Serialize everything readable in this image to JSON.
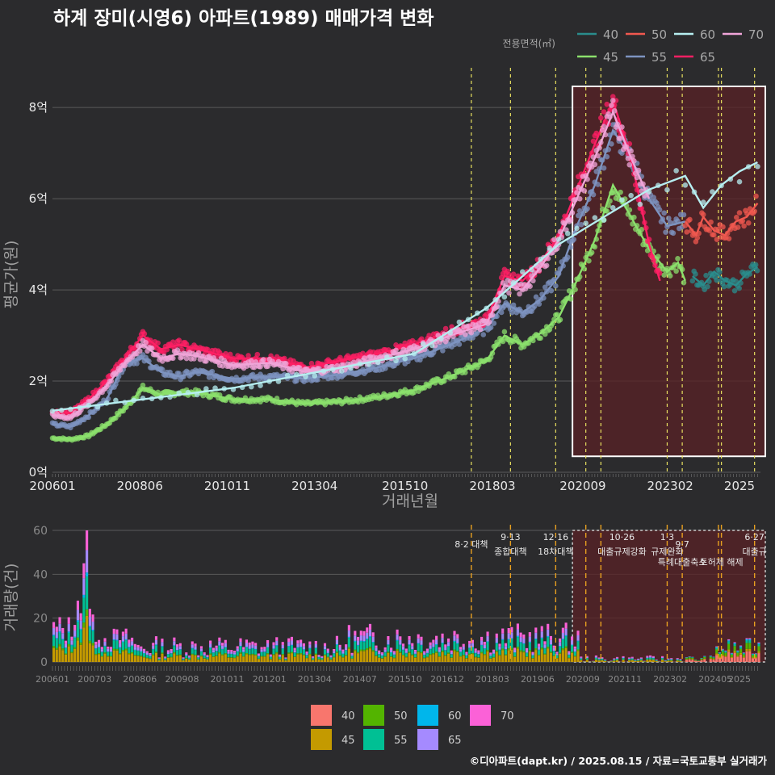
{
  "title": "하계 장미(시영6) 아파트(1989) 매매가격 변화",
  "source": "©디아파트(dapt.kr) / 2025.08.15 / 자료=국토교통부 실거래가",
  "colors": {
    "bg": "#2b2b2d",
    "grid": "#5a5a5a",
    "line": {
      "40": "#2a8c8c",
      "45": "#8be06c",
      "50": "#f0584f",
      "55": "#7d93c0",
      "60": "#b6eef0",
      "65": "#ff1f64",
      "70": "#f0a4d8"
    },
    "bar": {
      "40": "#f8766d",
      "45": "#c49a00",
      "50": "#53b400",
      "55": "#00c094",
      "60": "#00b6eb",
      "65": "#a58aff",
      "70": "#fb61d7"
    }
  },
  "top_chart": {
    "type": "line",
    "xlabel": "거래년월",
    "ylabel": "평균가(원)",
    "x_ticks": [
      "200601",
      "200806",
      "201011",
      "201304",
      "201510",
      "201803",
      "202009",
      "202302",
      "2025"
    ],
    "y_ticks": [
      "0억",
      "2억",
      "4억",
      "6억",
      "8억"
    ],
    "ylim": [
      0,
      8.8
    ],
    "legend_title": "전용면적(㎡)",
    "legend": [
      "40",
      "50",
      "60",
      "70",
      "45",
      "55",
      "65"
    ],
    "highlight_window": {
      "start": "202012",
      "end": "202507"
    },
    "policy_dates": [
      "201708",
      "201809",
      "201912",
      "202010",
      "202103",
      "202301",
      "202306",
      "202406",
      "202407",
      "202506"
    ],
    "series": [
      {
        "name": "45",
        "values": [
          [
            2006.0,
            0.75
          ],
          [
            2006.5,
            0.72
          ],
          [
            2007.0,
            0.8
          ],
          [
            2007.5,
            1.05
          ],
          [
            2008.0,
            1.4
          ],
          [
            2008.5,
            1.85
          ],
          [
            2009.0,
            1.7
          ],
          [
            2009.5,
            1.75
          ],
          [
            2010.0,
            1.75
          ],
          [
            2011.0,
            1.6
          ],
          [
            2012.0,
            1.6
          ],
          [
            2013.0,
            1.5
          ],
          [
            2014.0,
            1.55
          ],
          [
            2015.0,
            1.65
          ],
          [
            2016.0,
            1.8
          ],
          [
            2017.0,
            2.1
          ],
          [
            2018.0,
            2.45
          ],
          [
            2018.5,
            3.0
          ],
          [
            2019.0,
            2.8
          ],
          [
            2019.5,
            3.05
          ],
          [
            2020.0,
            3.4
          ],
          [
            2020.5,
            4.2
          ],
          [
            2021.0,
            5.1
          ],
          [
            2021.5,
            6.3
          ],
          [
            2022.0,
            5.6
          ],
          [
            2022.5,
            4.9
          ],
          [
            2023.0,
            4.4
          ],
          [
            2023.3,
            4.6
          ],
          [
            2023.5,
            4.2
          ]
        ]
      },
      {
        "name": "55",
        "values": [
          [
            2006.0,
            1.05
          ],
          [
            2006.5,
            1.0
          ],
          [
            2007.0,
            1.25
          ],
          [
            2007.5,
            1.6
          ],
          [
            2008.0,
            2.4
          ],
          [
            2008.5,
            2.5
          ],
          [
            2009.0,
            2.2
          ],
          [
            2009.5,
            2.1
          ],
          [
            2010.0,
            2.2
          ],
          [
            2011.0,
            2.05
          ],
          [
            2012.0,
            2.1
          ],
          [
            2013.0,
            2.05
          ],
          [
            2014.0,
            2.15
          ],
          [
            2015.0,
            2.3
          ],
          [
            2016.0,
            2.5
          ],
          [
            2017.0,
            2.8
          ],
          [
            2018.0,
            3.15
          ],
          [
            2018.5,
            3.7
          ],
          [
            2019.0,
            3.5
          ],
          [
            2019.5,
            3.8
          ],
          [
            2020.0,
            4.3
          ],
          [
            2020.5,
            5.4
          ],
          [
            2021.0,
            6.3
          ],
          [
            2021.5,
            7.5
          ],
          [
            2022.0,
            6.9
          ],
          [
            2022.5,
            6.0
          ],
          [
            2023.0,
            5.4
          ],
          [
            2023.5,
            5.5
          ]
        ]
      },
      {
        "name": "65",
        "values": [
          [
            2006.0,
            1.35
          ],
          [
            2006.5,
            1.3
          ],
          [
            2007.0,
            1.6
          ],
          [
            2007.5,
            2.0
          ],
          [
            2008.0,
            2.5
          ],
          [
            2008.5,
            3.0
          ],
          [
            2009.0,
            2.7
          ],
          [
            2009.5,
            2.8
          ],
          [
            2010.0,
            2.7
          ],
          [
            2011.0,
            2.5
          ],
          [
            2012.0,
            2.5
          ],
          [
            2013.0,
            2.3
          ],
          [
            2014.0,
            2.45
          ],
          [
            2015.0,
            2.6
          ],
          [
            2016.0,
            2.8
          ],
          [
            2017.0,
            3.1
          ],
          [
            2018.0,
            3.35
          ],
          [
            2018.5,
            4.3
          ],
          [
            2019.0,
            4.2
          ],
          [
            2019.5,
            4.6
          ],
          [
            2020.0,
            5.2
          ],
          [
            2020.5,
            6.2
          ],
          [
            2021.0,
            7.2
          ],
          [
            2021.5,
            8.15
          ],
          [
            2022.0,
            6.9
          ],
          [
            2022.5,
            5.0
          ],
          [
            2022.8,
            4.2
          ]
        ]
      },
      {
        "name": "70",
        "values": [
          [
            2006.0,
            1.25
          ],
          [
            2006.5,
            1.2
          ],
          [
            2007.0,
            1.5
          ],
          [
            2007.5,
            1.9
          ],
          [
            2008.0,
            2.4
          ],
          [
            2008.5,
            2.8
          ],
          [
            2009.0,
            2.5
          ],
          [
            2009.5,
            2.6
          ],
          [
            2010.0,
            2.55
          ],
          [
            2011.0,
            2.35
          ],
          [
            2012.0,
            2.4
          ],
          [
            2013.0,
            2.2
          ],
          [
            2014.0,
            2.3
          ],
          [
            2015.0,
            2.5
          ],
          [
            2016.0,
            2.7
          ],
          [
            2017.0,
            3.0
          ],
          [
            2018.0,
            3.25
          ],
          [
            2018.5,
            4.1
          ],
          [
            2019.0,
            4.0
          ],
          [
            2019.5,
            4.5
          ],
          [
            2020.0,
            5.1
          ],
          [
            2020.5,
            6.0
          ],
          [
            2021.0,
            6.9
          ],
          [
            2021.5,
            7.9
          ],
          [
            2022.0,
            6.9
          ],
          [
            2022.5,
            6.0
          ]
        ]
      },
      {
        "name": "60",
        "values": [
          [
            2006.0,
            1.35
          ],
          [
            2011.0,
            1.85
          ],
          [
            2013.0,
            2.15
          ],
          [
            2016.0,
            2.6
          ],
          [
            2018.0,
            3.6
          ],
          [
            2020.0,
            5.0
          ],
          [
            2022.5,
            6.2
          ],
          [
            2023.5,
            6.5
          ],
          [
            2024.0,
            5.8
          ],
          [
            2024.5,
            6.3
          ],
          [
            2025.0,
            6.6
          ],
          [
            2025.5,
            6.8
          ]
        ]
      },
      {
        "name": "50",
        "values": [
          [
            2023.5,
            5.5
          ],
          [
            2023.8,
            5.2
          ],
          [
            2024.0,
            5.6
          ],
          [
            2024.3,
            5.3
          ],
          [
            2024.6,
            5.2
          ],
          [
            2024.9,
            5.5
          ],
          [
            2025.2,
            5.6
          ],
          [
            2025.5,
            5.9
          ]
        ]
      },
      {
        "name": "40",
        "values": [
          [
            2023.7,
            4.3
          ],
          [
            2024.0,
            4.1
          ],
          [
            2024.3,
            4.4
          ],
          [
            2024.6,
            4.2
          ],
          [
            2024.9,
            4.1
          ],
          [
            2025.2,
            4.35
          ],
          [
            2025.5,
            4.5
          ]
        ]
      }
    ]
  },
  "bottom_chart": {
    "type": "bar",
    "ylabel": "거래량(건)",
    "x_ticks": [
      "200601",
      "200703",
      "200806",
      "200908",
      "201011",
      "201201",
      "201304",
      "201407",
      "201510",
      "201612",
      "201803",
      "201906",
      "202009",
      "202111",
      "202302",
      "202405",
      "2025"
    ],
    "y_ticks": [
      "0",
      "20",
      "40",
      "60"
    ],
    "ylim": [
      0,
      62
    ],
    "legend": [
      "40",
      "50",
      "60",
      "70",
      "45",
      "55",
      "65"
    ],
    "annotations": [
      {
        "date": "201708",
        "label": "8·2 대책",
        "row": 1
      },
      {
        "date": "201809",
        "label": "9·13",
        "row": 0
      },
      {
        "date": "201809",
        "label": "종합대책",
        "row": 2
      },
      {
        "date": "201912",
        "label": "12·16",
        "row": 0
      },
      {
        "date": "201912",
        "label": "18차대책",
        "row": 2
      },
      {
        "date": "202110",
        "label": "10·26",
        "row": 0
      },
      {
        "date": "202110",
        "label": "대출규제강화",
        "row": 2
      },
      {
        "date": "202301",
        "label": "1·3",
        "row": 0
      },
      {
        "date": "202301",
        "label": "규제완화",
        "row": 2
      },
      {
        "date": "202306",
        "label": "9·7",
        "row": 1
      },
      {
        "date": "202306",
        "label": "특례대출축소",
        "row": 3
      },
      {
        "date": "202407",
        "label": "토허제 해제",
        "row": 3
      },
      {
        "date": "202506",
        "label": "6·27",
        "row": 0
      },
      {
        "date": "202506",
        "label": "대출규",
        "row": 2
      }
    ]
  }
}
